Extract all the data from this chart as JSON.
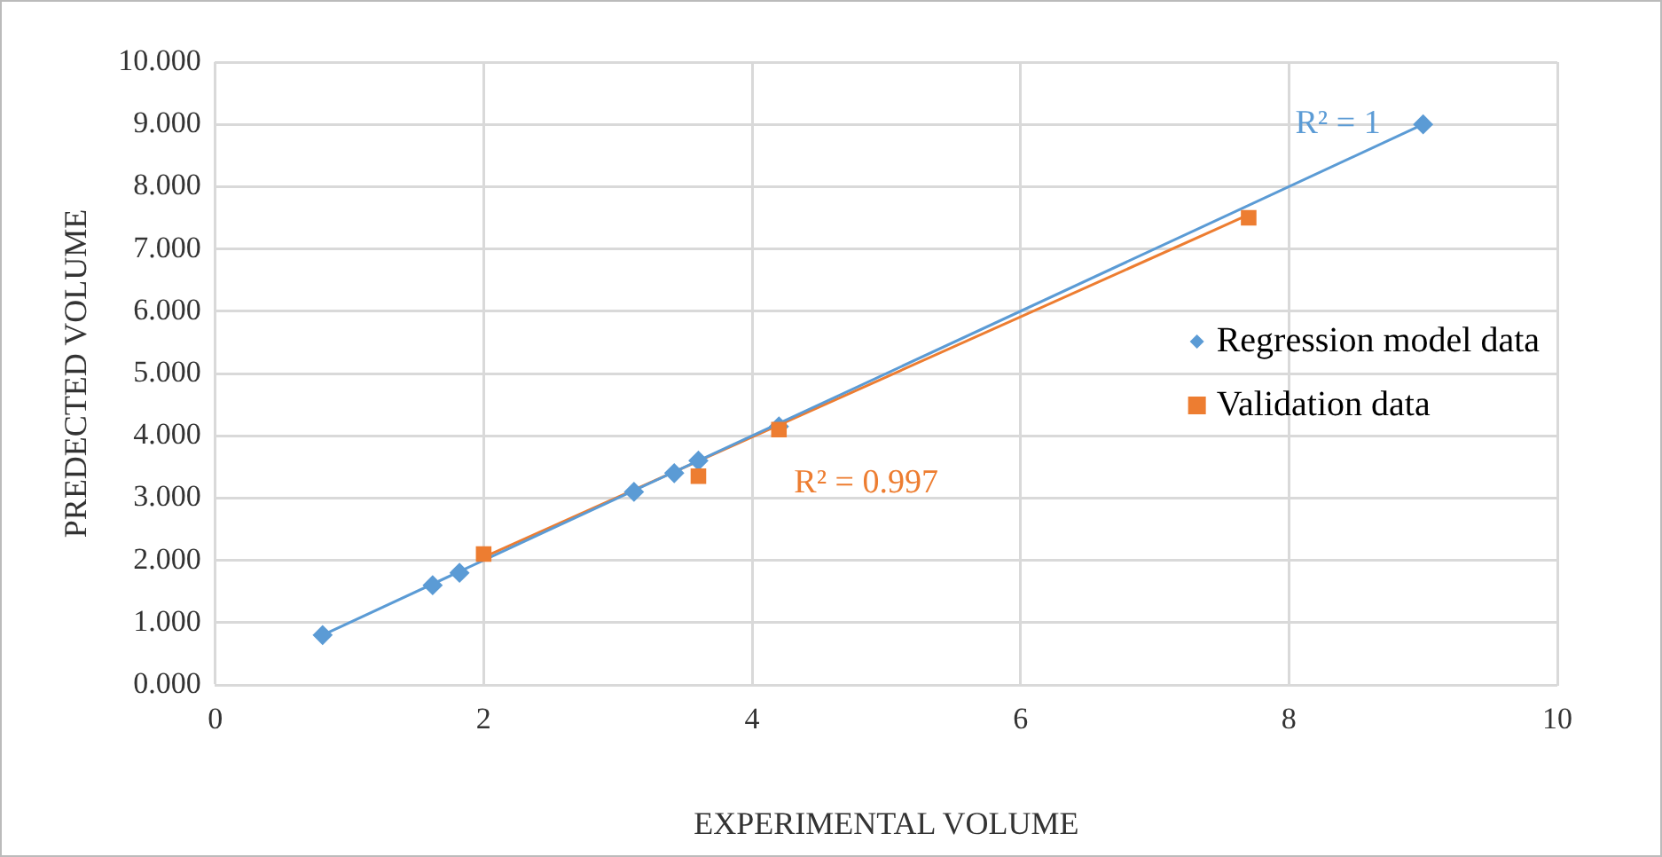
{
  "chart_data": {
    "type": "scatter",
    "xlabel": "EXPERIMENTAL VOLUME",
    "ylabel": "PREDECTED VOLUME",
    "series": [
      {
        "name": "Regression model data",
        "color": "#5b9bd5",
        "marker": "diamond",
        "x": [
          0.8,
          1.62,
          1.82,
          3.12,
          3.42,
          3.6,
          4.2,
          9.0
        ],
        "values": [
          0.8,
          1.6,
          1.8,
          3.1,
          3.4,
          3.6,
          4.15,
          9.0
        ]
      },
      {
        "name": "Validation data",
        "color": "#ed7d31",
        "marker": "square",
        "x": [
          2.0,
          3.6,
          4.2,
          7.7
        ],
        "values": [
          2.1,
          3.35,
          4.1,
          7.5
        ]
      },
      {
        "type": "line",
        "color": "#5b9bd5",
        "marker": "none",
        "x": [
          0.8,
          9.0
        ],
        "values": [
          0.8,
          9.0
        ]
      },
      {
        "type": "line",
        "color": "#ed7d31",
        "marker": "none",
        "x": [
          2.0,
          7.7
        ],
        "values": [
          2.05,
          7.55
        ]
      }
    ],
    "annotations": [
      "R² = 1",
      "R² = 0.997"
    ],
    "xlim": [
      0,
      10
    ],
    "xticks": [
      0,
      2,
      4,
      6,
      8,
      10
    ],
    "ylim": [
      0,
      10
    ],
    "yticks": [
      {
        "value": 0,
        "label": "0.000"
      },
      {
        "value": 1,
        "label": "1.000"
      },
      {
        "value": 2,
        "label": "2.000"
      },
      {
        "value": 3,
        "label": "3.000"
      },
      {
        "value": 4,
        "label": "4.000"
      },
      {
        "value": 5,
        "label": "5.000"
      },
      {
        "value": 6,
        "label": "6.000"
      },
      {
        "value": 7,
        "label": "7.000"
      },
      {
        "value": 8,
        "label": "8.000"
      },
      {
        "value": 9,
        "label": "9.000"
      },
      {
        "value": 10,
        "label": "10.000"
      }
    ],
    "grid": true,
    "legend": "right"
  }
}
